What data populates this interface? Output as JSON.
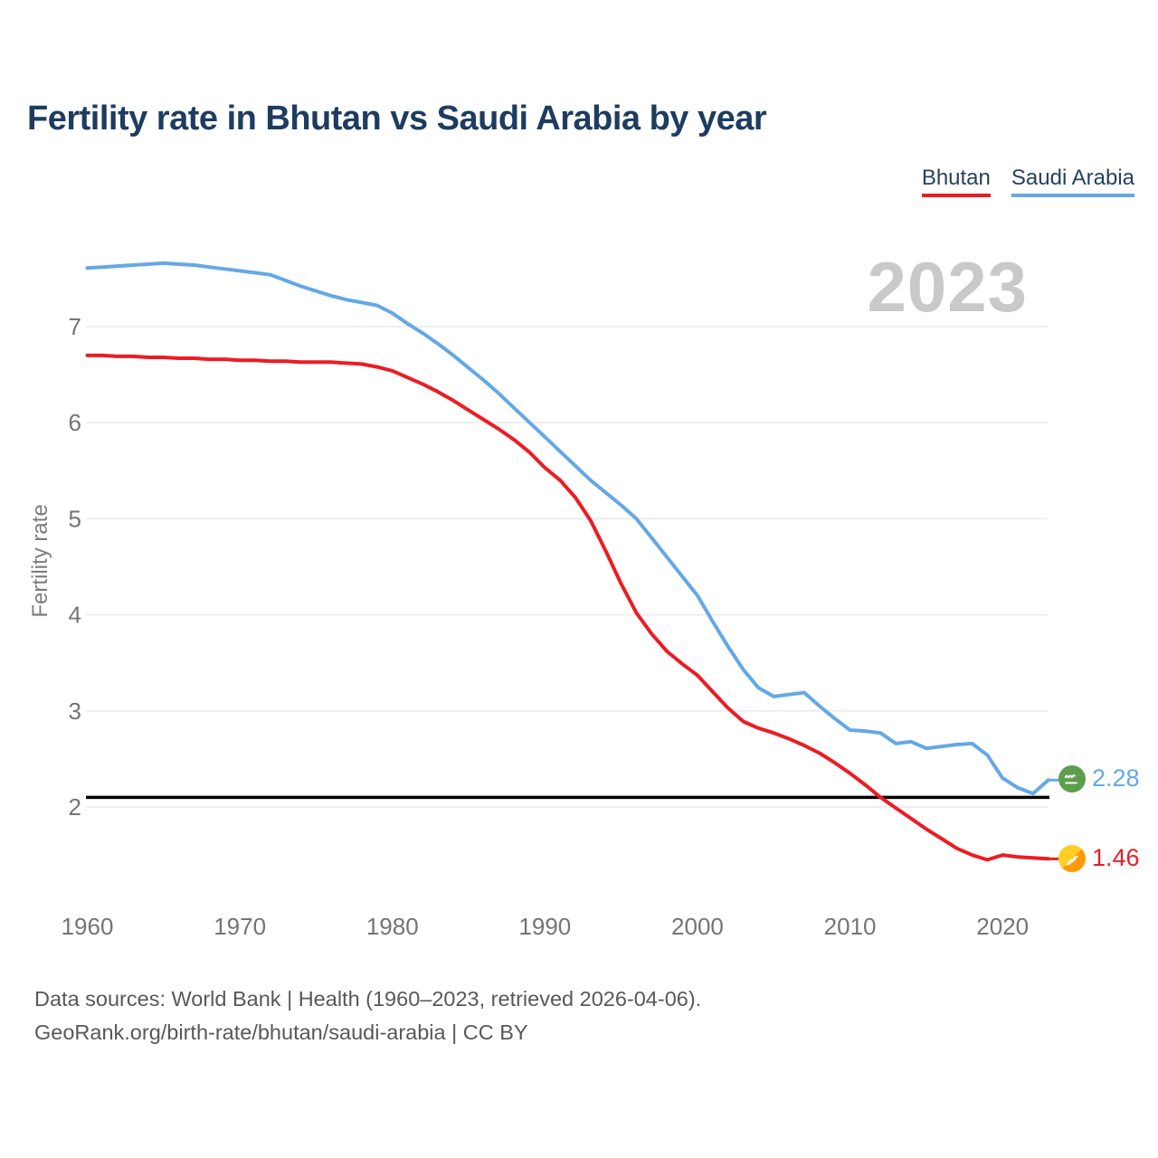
{
  "title": "Fertility rate in Bhutan vs Saudi Arabia by year",
  "watermark_year": "2023",
  "colors": {
    "title": "#1e3c5f",
    "axis_text": "#747474",
    "grid": "#eaeaea",
    "watermark": "#c9c9c9",
    "footer": "#58585a",
    "reference_line": "#000000",
    "bhutan_red": "#ec1c24",
    "saudi_blue": "#64a8e6"
  },
  "legend": {
    "items": [
      {
        "label": "Bhutan",
        "color": "#ec1c24"
      },
      {
        "label": "Saudi Arabia",
        "color": "#64a8e6"
      }
    ]
  },
  "chart_data": {
    "type": "line",
    "title": "Fertility rate in Bhutan vs Saudi Arabia by year",
    "ylabel": "Fertility rate",
    "xlabel": "",
    "grid": "horizontal",
    "legend_position": "top-right",
    "ylim": [
      1.2,
      7.9
    ],
    "yticks": [
      2,
      3,
      4,
      5,
      6,
      7
    ],
    "xticks": [
      1960,
      1970,
      1980,
      1990,
      2000,
      2010,
      2020
    ],
    "x": [
      1960,
      1961,
      1962,
      1963,
      1964,
      1965,
      1966,
      1967,
      1968,
      1969,
      1970,
      1971,
      1972,
      1973,
      1974,
      1975,
      1976,
      1977,
      1978,
      1979,
      1980,
      1981,
      1982,
      1983,
      1984,
      1985,
      1986,
      1987,
      1988,
      1989,
      1990,
      1991,
      1992,
      1993,
      1994,
      1995,
      1996,
      1997,
      1998,
      1999,
      2000,
      2001,
      2002,
      2003,
      2004,
      2005,
      2006,
      2007,
      2008,
      2009,
      2010,
      2011,
      2012,
      2013,
      2014,
      2015,
      2016,
      2017,
      2018,
      2019,
      2020,
      2021,
      2022,
      2023
    ],
    "series": [
      {
        "name": "Bhutan",
        "color": "#ec1c24",
        "end_label": "1.46",
        "end_icon": "bhutan-flag",
        "values": [
          6.7,
          6.7,
          6.69,
          6.69,
          6.68,
          6.68,
          6.67,
          6.67,
          6.66,
          6.66,
          6.65,
          6.65,
          6.64,
          6.64,
          6.63,
          6.63,
          6.63,
          6.62,
          6.61,
          6.58,
          6.54,
          6.47,
          6.4,
          6.32,
          6.23,
          6.13,
          6.03,
          5.93,
          5.82,
          5.69,
          5.53,
          5.4,
          5.22,
          4.98,
          4.66,
          4.32,
          4.02,
          3.8,
          3.62,
          3.49,
          3.37,
          3.2,
          3.03,
          2.89,
          2.82,
          2.77,
          2.71,
          2.64,
          2.56,
          2.46,
          2.35,
          2.23,
          2.1,
          1.99,
          1.88,
          1.77,
          1.67,
          1.57,
          1.5,
          1.45,
          1.5,
          1.48,
          1.47,
          1.46
        ]
      },
      {
        "name": "Saudi Arabia",
        "color": "#64a8e6",
        "end_label": "2.28",
        "end_icon": "saudi-arabia-flag",
        "values": [
          7.61,
          7.62,
          7.63,
          7.64,
          7.65,
          7.66,
          7.65,
          7.64,
          7.62,
          7.6,
          7.58,
          7.56,
          7.54,
          7.48,
          7.42,
          7.37,
          7.32,
          7.28,
          7.25,
          7.22,
          7.14,
          7.03,
          6.93,
          6.82,
          6.7,
          6.57,
          6.44,
          6.3,
          6.15,
          6.0,
          5.85,
          5.7,
          5.55,
          5.4,
          5.27,
          5.14,
          5.0,
          4.8,
          4.6,
          4.4,
          4.2,
          3.93,
          3.67,
          3.43,
          3.24,
          3.15,
          3.17,
          3.19,
          3.05,
          2.92,
          2.8,
          2.79,
          2.77,
          2.66,
          2.68,
          2.61,
          2.63,
          2.65,
          2.66,
          2.54,
          2.3,
          2.2,
          2.14,
          2.28
        ]
      }
    ],
    "reference_line": {
      "value": 2.1,
      "color": "#000000"
    }
  },
  "footer": {
    "line1": "Data sources: World Bank | Health (1960–2023, retrieved 2026-04-06).",
    "line2": "GeoRank.org/birth-rate/bhutan/saudi-arabia | CC BY"
  }
}
